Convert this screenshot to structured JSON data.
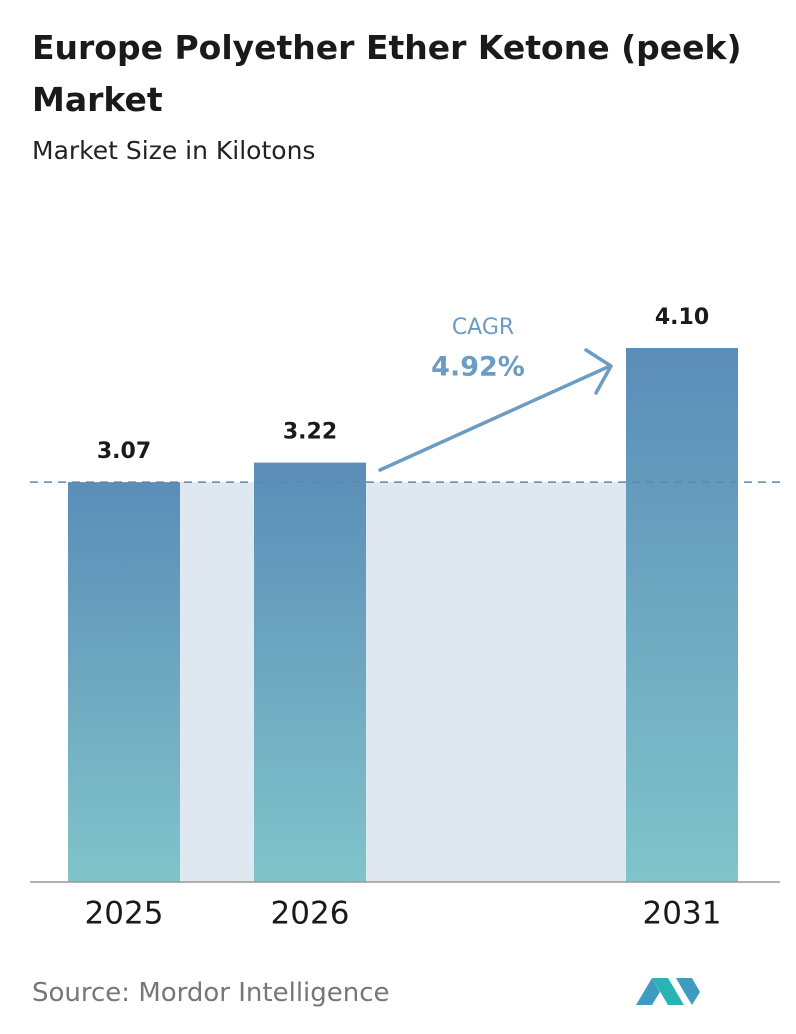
{
  "chart_data": {
    "type": "bar",
    "title": "Europe Polyether Ether Ketone (peek) Market",
    "subtitle": "Market Size in Kilotons",
    "categories": [
      "2025",
      "2026",
      "2031"
    ],
    "values": [
      3.07,
      3.22,
      4.1
    ],
    "value_labels": [
      "3.07",
      "3.22",
      "4.10"
    ],
    "annotations": {
      "cagr_label": "CAGR",
      "cagr_value": "4.92%"
    },
    "source": "Source: Mordor Intelligence"
  }
}
